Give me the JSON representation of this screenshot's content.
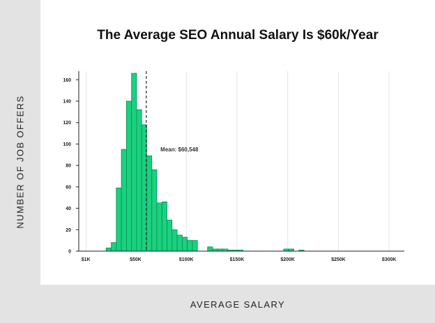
{
  "colors": {
    "bar": "#19d17f",
    "bar_stroke": "#0e8a52",
    "grid": "#e4e4e4",
    "axis": "#222222",
    "mean_line": "#333333",
    "band": "#e3e3e3"
  },
  "chart_data": {
    "type": "bar",
    "title": "The Average SEO Annual Salary Is $60k/Year",
    "xlabel": "AVERAGE SALARY",
    "ylabel": "NUMBER OF JOB OFFERS",
    "x_tick_labels": [
      "$1K",
      "$50K",
      "$100K",
      "$150K",
      "$200K",
      "$250K",
      "$300K"
    ],
    "x_tick_values": [
      1,
      50,
      100,
      150,
      200,
      250,
      300
    ],
    "y_ticks": [
      0,
      20,
      40,
      60,
      80,
      100,
      120,
      140,
      160
    ],
    "xlim": [
      -6,
      315
    ],
    "ylim": [
      0,
      168
    ],
    "grid": "vertical",
    "bin_width": 5,
    "bins_start": [
      21,
      26,
      31,
      36,
      41,
      46,
      51,
      56,
      61,
      66,
      71,
      76,
      81,
      86,
      91,
      96,
      101,
      106,
      111,
      116,
      121,
      126,
      131,
      136,
      141,
      146,
      151,
      156,
      161,
      166,
      171,
      176,
      181,
      186,
      191,
      196,
      201,
      206,
      211,
      216
    ],
    "values": [
      3,
      8,
      59,
      95,
      140,
      166,
      132,
      118,
      89,
      76,
      45,
      46,
      29,
      20,
      15,
      13,
      10,
      10,
      0,
      0,
      4,
      2,
      2,
      2,
      1,
      1,
      1,
      0,
      0,
      0,
      0,
      0,
      0,
      0,
      0,
      2,
      2,
      0,
      1,
      0
    ],
    "mean": 60.548,
    "mean_label": "Mean: $60,548"
  }
}
